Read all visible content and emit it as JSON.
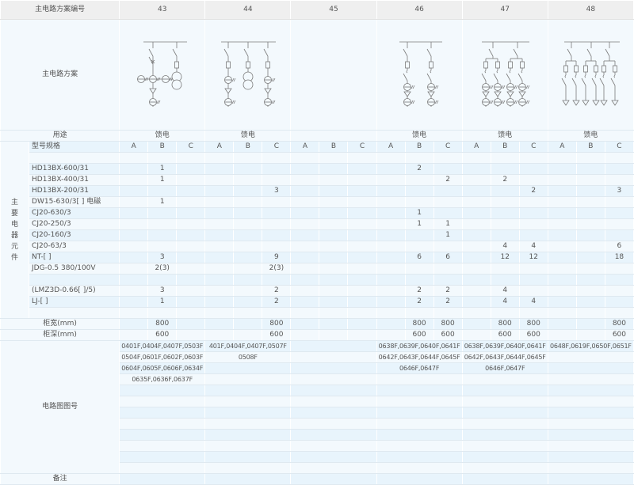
{
  "header": {
    "scheme_label": "主电路方案编号",
    "diagram_label": "主电路方案",
    "usage_label": "用途"
  },
  "schemes": [
    {
      "number": "43",
      "usage": "馈电"
    },
    {
      "number": "44",
      "usage": "馈电"
    },
    {
      "number": "45",
      "usage": ""
    },
    {
      "number": "46",
      "usage": "馈电"
    },
    {
      "number": "47",
      "usage": "馈电"
    },
    {
      "number": "48",
      "usage": "馈电"
    }
  ],
  "components": {
    "group_label": "主要电器元件",
    "spec_label": "型号规格",
    "subcols": [
      "A",
      "B",
      "C"
    ],
    "rows": [
      {
        "label": "",
        "values": [
          "",
          "",
          "",
          "",
          "",
          "",
          "",
          "",
          "",
          "",
          "",
          "",
          "",
          "",
          "",
          "",
          "",
          ""
        ]
      },
      {
        "label": "HD13BX-600/31",
        "values": [
          "",
          "1",
          "",
          "",
          "",
          "",
          "",
          "",
          "",
          "",
          "2",
          "",
          "",
          "",
          "",
          "",
          "",
          ""
        ]
      },
      {
        "label": "HD13BX-400/31",
        "values": [
          "",
          "1",
          "",
          "",
          "",
          "",
          "",
          "",
          "",
          "",
          "",
          "2",
          "",
          "2",
          "",
          "",
          "",
          ""
        ]
      },
      {
        "label": "HD13BX-200/31",
        "values": [
          "",
          "",
          "",
          "",
          "",
          "3",
          "",
          "",
          "",
          "",
          "",
          "",
          "",
          "",
          "2",
          "",
          "",
          "3"
        ]
      },
      {
        "label": "DW15-630/3[ ] 电磁",
        "values": [
          "",
          "1",
          "",
          "",
          "",
          "",
          "",
          "",
          "",
          "",
          "",
          "",
          "",
          "",
          "",
          "",
          "",
          ""
        ]
      },
      {
        "label": "CJ20-630/3",
        "values": [
          "",
          "",
          "",
          "",
          "",
          "",
          "",
          "",
          "",
          "",
          "1",
          "",
          "",
          "",
          "",
          "",
          "",
          ""
        ]
      },
      {
        "label": "CJ20-250/3",
        "values": [
          "",
          "",
          "",
          "",
          "",
          "",
          "",
          "",
          "",
          "",
          "1",
          "1",
          "",
          "",
          "",
          "",
          "",
          ""
        ]
      },
      {
        "label": "CJ20-160/3",
        "values": [
          "",
          "",
          "",
          "",
          "",
          "",
          "",
          "",
          "",
          "",
          "",
          "1",
          "",
          "",
          "",
          "",
          "",
          ""
        ]
      },
      {
        "label": "CJ20-63/3",
        "values": [
          "",
          "",
          "",
          "",
          "",
          "",
          "",
          "",
          "",
          "",
          "",
          "",
          "",
          "4",
          "4",
          "",
          "",
          "6"
        ]
      },
      {
        "label": "NT-[ ]",
        "values": [
          "",
          "3",
          "",
          "",
          "",
          "9",
          "",
          "",
          "",
          "",
          "6",
          "6",
          "",
          "12",
          "12",
          "",
          "",
          "18"
        ]
      },
      {
        "label": "JDG-0.5  380/100V",
        "values": [
          "",
          "2(3)",
          "",
          "",
          "",
          "2(3)",
          "",
          "",
          "",
          "",
          "",
          "",
          "",
          "",
          "",
          "",
          "",
          ""
        ]
      },
      {
        "label": "",
        "values": [
          "",
          "",
          "",
          "",
          "",
          "",
          "",
          "",
          "",
          "",
          "",
          "",
          "",
          "",
          "",
          "",
          "",
          ""
        ]
      },
      {
        "label": "(LMZ3D-0.66[ ]/5)",
        "values": [
          "",
          "3",
          "",
          "",
          "",
          "2",
          "",
          "",
          "",
          "",
          "2",
          "2",
          "",
          "4",
          "",
          "",
          "",
          ""
        ]
      },
      {
        "label": "LJ-[ ]",
        "values": [
          "",
          "1",
          "",
          "",
          "",
          "2",
          "",
          "",
          "",
          "",
          "2",
          "2",
          "",
          "4",
          "4",
          "",
          "",
          ""
        ]
      },
      {
        "label": "",
        "values": [
          "",
          "",
          "",
          "",
          "",
          "",
          "",
          "",
          "",
          "",
          "",
          "",
          "",
          "",
          "",
          "",
          "",
          ""
        ]
      }
    ]
  },
  "cabinet": [
    {
      "label": "柜宽(mm)",
      "values": [
        "",
        "800",
        "",
        "",
        "",
        "800",
        "",
        "",
        "",
        "",
        "800",
        "800",
        "",
        "800",
        "800",
        "",
        "",
        "800"
      ]
    },
    {
      "label": "柜深(mm)",
      "values": [
        "",
        "600",
        "",
        "",
        "",
        "600",
        "",
        "",
        "",
        "",
        "600",
        "600",
        "",
        "600",
        "600",
        "",
        "",
        "600"
      ]
    }
  ],
  "drawings": {
    "label": "电路图图号",
    "rows": [
      [
        "0401F,0404F,0407F,0503F",
        "401F,0404F,0407F,0507F",
        "",
        "0638F,0639F,0640F,0641F",
        "0638F,0639F,0640F,0641F",
        "0648F,0619F,0650F,0651F"
      ],
      [
        "0504F,0601F,0602F,0603F",
        "0508F",
        "",
        "0642F,0643F,0644F,0645F",
        "0642F,0643F,0644F,0645F",
        ""
      ],
      [
        "0604F,0605F,0606F,0634F",
        "",
        "",
        "0646F,0647F",
        "0646F,0647F",
        ""
      ],
      [
        "0635F,0636F,0637F",
        "",
        "",
        "",
        "",
        ""
      ],
      [
        "",
        "",
        "",
        "",
        "",
        ""
      ],
      [
        "",
        "",
        "",
        "",
        "",
        ""
      ],
      [
        "",
        "",
        "",
        "",
        "",
        ""
      ],
      [
        "",
        "",
        "",
        "",
        "",
        ""
      ],
      [
        "",
        "",
        "",
        "",
        "",
        ""
      ],
      [
        "",
        "",
        "",
        "",
        "",
        ""
      ],
      [
        "",
        "",
        "",
        "",
        "",
        ""
      ],
      [
        "",
        "",
        "",
        "",
        "",
        ""
      ]
    ]
  },
  "remarks_label": "备注",
  "colors": {
    "row_light": "#f3f9fd",
    "row_blue": "#e8f4fc",
    "header_gray": "#efefef",
    "text": "#555555",
    "line_art": "#7a7a7a"
  }
}
